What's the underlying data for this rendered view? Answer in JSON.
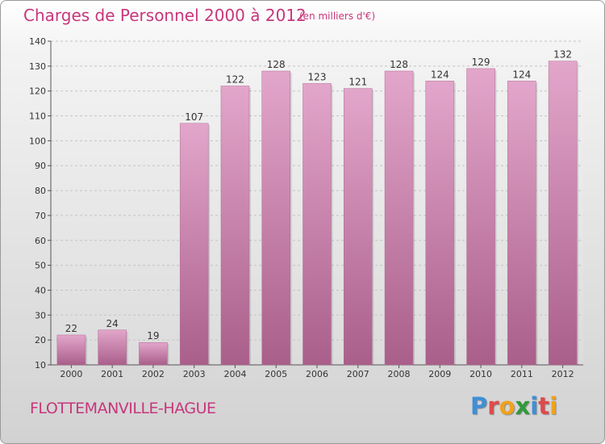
{
  "header": {
    "title": "Charges de Personnel 2000 à 2012",
    "subtitle": "(en milliers d'€)"
  },
  "footer": {
    "place": "FLOTTEMANVILLE-HAGUE",
    "logo_letters": [
      {
        "ch": "P",
        "color": "#3f8fd6"
      },
      {
        "ch": "r",
        "color": "#e04a4a"
      },
      {
        "ch": "o",
        "color": "#f1a21c"
      },
      {
        "ch": "x",
        "color": "#2f9a3a"
      },
      {
        "ch": "i",
        "color": "#3f8fd6"
      },
      {
        "ch": "t",
        "color": "#e04a4a"
      },
      {
        "ch": "i",
        "color": "#f1a21c"
      }
    ]
  },
  "chart_data": {
    "type": "bar",
    "title": "Charges de Personnel 2000 à 2012",
    "subtitle": "(en milliers d'€)",
    "categories": [
      "2000",
      "2001",
      "2002",
      "2003",
      "2004",
      "2005",
      "2006",
      "2007",
      "2008",
      "2009",
      "2010",
      "2011",
      "2012"
    ],
    "values": [
      22,
      24,
      19,
      107,
      122,
      128,
      123,
      121,
      128,
      124,
      129,
      124,
      132
    ],
    "ylim": [
      10,
      140
    ],
    "yticks": [
      10,
      20,
      30,
      40,
      50,
      60,
      70,
      80,
      90,
      100,
      110,
      120,
      130,
      140
    ],
    "grid": true,
    "bar_color": "#c67ea8",
    "bar_color_light": "#e3a6cb",
    "bar_color_dark": "#a95f8a"
  }
}
